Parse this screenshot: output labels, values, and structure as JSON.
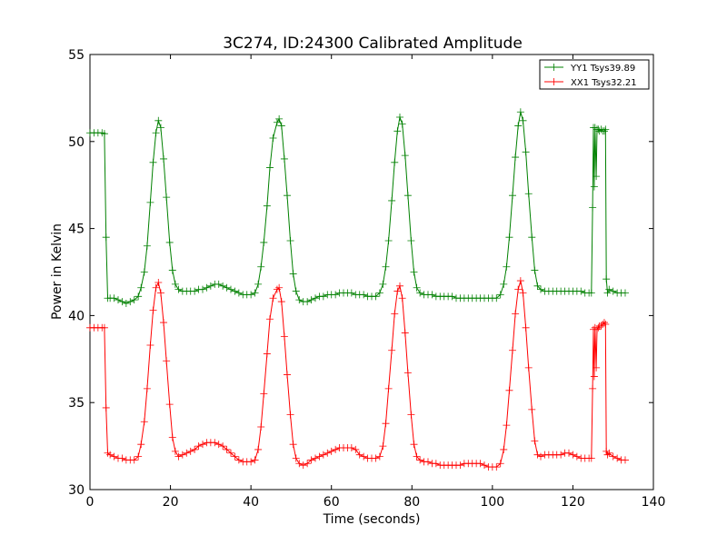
{
  "chart_data": {
    "type": "line",
    "title": "3C274, ID:24300 Calibrated Amplitude",
    "xlabel": "Time (seconds)",
    "ylabel": "Power in Kelvin",
    "xlim": [
      0,
      140
    ],
    "ylim": [
      30,
      55
    ],
    "xticks": [
      "0",
      "20",
      "40",
      "60",
      "80",
      "100",
      "120",
      "140"
    ],
    "yticks": [
      "30",
      "35",
      "40",
      "45",
      "50",
      "55"
    ],
    "grid": false,
    "legend": "top-right",
    "marker": "+",
    "series": [
      {
        "name": "YY1 Tsys39.89",
        "color": "#008000",
        "points": [
          [
            0,
            50.5
          ],
          [
            1,
            50.5
          ],
          [
            2,
            50.5
          ],
          [
            3,
            50.5
          ],
          [
            3.6,
            50.45
          ],
          [
            4.0,
            44.5
          ],
          [
            4.4,
            41.0
          ],
          [
            5,
            41.0
          ],
          [
            6,
            41.0
          ],
          [
            7,
            40.9
          ],
          [
            8,
            40.8
          ],
          [
            9,
            40.7
          ],
          [
            10,
            40.8
          ],
          [
            11,
            40.9
          ],
          [
            12,
            41.1
          ],
          [
            12.7,
            41.6
          ],
          [
            13.5,
            42.5
          ],
          [
            14.2,
            44.0
          ],
          [
            15,
            46.5
          ],
          [
            15.7,
            48.8
          ],
          [
            16.4,
            50.5
          ],
          [
            17,
            51.2
          ],
          [
            17.6,
            50.8
          ],
          [
            18.3,
            49.0
          ],
          [
            19,
            46.8
          ],
          [
            19.8,
            44.2
          ],
          [
            20.5,
            42.6
          ],
          [
            21.2,
            41.8
          ],
          [
            22,
            41.5
          ],
          [
            23,
            41.4
          ],
          [
            24,
            41.4
          ],
          [
            25,
            41.4
          ],
          [
            26,
            41.4
          ],
          [
            27,
            41.5
          ],
          [
            28,
            41.5
          ],
          [
            29,
            41.6
          ],
          [
            30,
            41.7
          ],
          [
            31,
            41.8
          ],
          [
            32,
            41.8
          ],
          [
            33,
            41.7
          ],
          [
            34,
            41.6
          ],
          [
            35,
            41.5
          ],
          [
            36,
            41.4
          ],
          [
            37,
            41.3
          ],
          [
            38,
            41.2
          ],
          [
            39,
            41.2
          ],
          [
            40,
            41.2
          ],
          [
            41,
            41.3
          ],
          [
            41.8,
            41.8
          ],
          [
            42.5,
            42.8
          ],
          [
            43.2,
            44.2
          ],
          [
            44,
            46.3
          ],
          [
            44.7,
            48.5
          ],
          [
            45.5,
            50.2
          ],
          [
            46.5,
            51.1
          ],
          [
            47,
            51.3
          ],
          [
            47.6,
            50.9
          ],
          [
            48.3,
            49.0
          ],
          [
            49,
            46.9
          ],
          [
            49.8,
            44.3
          ],
          [
            50.5,
            42.4
          ],
          [
            51.2,
            41.4
          ],
          [
            52,
            40.9
          ],
          [
            53,
            40.8
          ],
          [
            54,
            40.8
          ],
          [
            55,
            40.9
          ],
          [
            56,
            41.0
          ],
          [
            57,
            41.1
          ],
          [
            58,
            41.1
          ],
          [
            59,
            41.2
          ],
          [
            60,
            41.2
          ],
          [
            61,
            41.2
          ],
          [
            62,
            41.3
          ],
          [
            63,
            41.3
          ],
          [
            64,
            41.3
          ],
          [
            65,
            41.3
          ],
          [
            66,
            41.2
          ],
          [
            67,
            41.2
          ],
          [
            68,
            41.2
          ],
          [
            69,
            41.1
          ],
          [
            70,
            41.1
          ],
          [
            71,
            41.1
          ],
          [
            72,
            41.3
          ],
          [
            72.8,
            41.8
          ],
          [
            73.5,
            42.8
          ],
          [
            74.2,
            44.3
          ],
          [
            75,
            46.6
          ],
          [
            75.7,
            48.8
          ],
          [
            76.4,
            50.6
          ],
          [
            77,
            51.4
          ],
          [
            77.6,
            51.0
          ],
          [
            78.3,
            49.2
          ],
          [
            79,
            46.9
          ],
          [
            79.8,
            44.3
          ],
          [
            80.5,
            42.5
          ],
          [
            81.2,
            41.6
          ],
          [
            82,
            41.3
          ],
          [
            83,
            41.2
          ],
          [
            84,
            41.2
          ],
          [
            85,
            41.2
          ],
          [
            86,
            41.1
          ],
          [
            87,
            41.1
          ],
          [
            88,
            41.1
          ],
          [
            89,
            41.1
          ],
          [
            90,
            41.1
          ],
          [
            91,
            41.0
          ],
          [
            92,
            41.0
          ],
          [
            93,
            41.0
          ],
          [
            94,
            41.0
          ],
          [
            95,
            41.0
          ],
          [
            96,
            41.0
          ],
          [
            97,
            41.0
          ],
          [
            98,
            41.0
          ],
          [
            99,
            41.0
          ],
          [
            100,
            41.0
          ],
          [
            101,
            41.0
          ],
          [
            102,
            41.2
          ],
          [
            102.8,
            41.8
          ],
          [
            103.5,
            42.8
          ],
          [
            104.2,
            44.5
          ],
          [
            105,
            46.9
          ],
          [
            105.7,
            49.1
          ],
          [
            106.4,
            50.9
          ],
          [
            107,
            51.7
          ],
          [
            107.6,
            51.2
          ],
          [
            108.3,
            49.4
          ],
          [
            109,
            47.0
          ],
          [
            109.8,
            44.5
          ],
          [
            110.5,
            42.6
          ],
          [
            111.2,
            41.7
          ],
          [
            112,
            41.5
          ],
          [
            113,
            41.4
          ],
          [
            114,
            41.4
          ],
          [
            115,
            41.4
          ],
          [
            116,
            41.4
          ],
          [
            117,
            41.4
          ],
          [
            118,
            41.4
          ],
          [
            119,
            41.4
          ],
          [
            120,
            41.4
          ],
          [
            121,
            41.4
          ],
          [
            122,
            41.4
          ],
          [
            123,
            41.3
          ],
          [
            124,
            41.3
          ],
          [
            124.6,
            41.3
          ],
          [
            124.9,
            46.2
          ],
          [
            125.1,
            50.8
          ],
          [
            125.3,
            47.4
          ],
          [
            125.5,
            50.8
          ],
          [
            125.8,
            48.0
          ],
          [
            126.0,
            50.7
          ],
          [
            126.3,
            50.7
          ],
          [
            126.6,
            50.6
          ],
          [
            127.0,
            50.7
          ],
          [
            127.4,
            50.6
          ],
          [
            127.8,
            50.6
          ],
          [
            128.1,
            50.7
          ],
          [
            128.3,
            42.1
          ],
          [
            128.6,
            41.3
          ],
          [
            129,
            41.5
          ],
          [
            130,
            41.4
          ],
          [
            131,
            41.3
          ],
          [
            132,
            41.3
          ],
          [
            133,
            41.3
          ]
        ]
      },
      {
        "name": "XX1 Tsys32.21",
        "color": "#ff0000",
        "points": [
          [
            0,
            39.3
          ],
          [
            1,
            39.3
          ],
          [
            2,
            39.3
          ],
          [
            3,
            39.3
          ],
          [
            3.6,
            39.3
          ],
          [
            4.0,
            34.7
          ],
          [
            4.4,
            32.1
          ],
          [
            5,
            32.0
          ],
          [
            6,
            31.9
          ],
          [
            7,
            31.8
          ],
          [
            8,
            31.8
          ],
          [
            9,
            31.7
          ],
          [
            10,
            31.7
          ],
          [
            11,
            31.7
          ],
          [
            12,
            31.9
          ],
          [
            12.7,
            32.6
          ],
          [
            13.5,
            33.9
          ],
          [
            14.2,
            35.8
          ],
          [
            15,
            38.3
          ],
          [
            15.7,
            40.3
          ],
          [
            16.4,
            41.6
          ],
          [
            17,
            41.9
          ],
          [
            17.6,
            41.3
          ],
          [
            18.3,
            39.6
          ],
          [
            19,
            37.4
          ],
          [
            19.8,
            34.9
          ],
          [
            20.5,
            33.0
          ],
          [
            21.2,
            32.2
          ],
          [
            22,
            31.9
          ],
          [
            23,
            32.0
          ],
          [
            24,
            32.1
          ],
          [
            25,
            32.2
          ],
          [
            26,
            32.3
          ],
          [
            27,
            32.5
          ],
          [
            28,
            32.6
          ],
          [
            29,
            32.7
          ],
          [
            30,
            32.7
          ],
          [
            31,
            32.7
          ],
          [
            32,
            32.6
          ],
          [
            33,
            32.5
          ],
          [
            34,
            32.3
          ],
          [
            35,
            32.1
          ],
          [
            36,
            31.9
          ],
          [
            37,
            31.7
          ],
          [
            38,
            31.6
          ],
          [
            39,
            31.6
          ],
          [
            40,
            31.6
          ],
          [
            41,
            31.7
          ],
          [
            41.8,
            32.3
          ],
          [
            42.5,
            33.6
          ],
          [
            43.2,
            35.5
          ],
          [
            44,
            37.8
          ],
          [
            44.7,
            39.8
          ],
          [
            45.5,
            41.0
          ],
          [
            46.5,
            41.5
          ],
          [
            47,
            41.6
          ],
          [
            47.6,
            40.8
          ],
          [
            48.3,
            38.8
          ],
          [
            49,
            36.6
          ],
          [
            49.8,
            34.3
          ],
          [
            50.5,
            32.6
          ],
          [
            51.2,
            31.8
          ],
          [
            52,
            31.5
          ],
          [
            53,
            31.4
          ],
          [
            54,
            31.5
          ],
          [
            55,
            31.7
          ],
          [
            56,
            31.8
          ],
          [
            57,
            31.9
          ],
          [
            58,
            32.0
          ],
          [
            59,
            32.1
          ],
          [
            60,
            32.2
          ],
          [
            61,
            32.3
          ],
          [
            62,
            32.4
          ],
          [
            63,
            32.4
          ],
          [
            64,
            32.4
          ],
          [
            65,
            32.4
          ],
          [
            66,
            32.3
          ],
          [
            67,
            32.0
          ],
          [
            68,
            31.9
          ],
          [
            69,
            31.8
          ],
          [
            70,
            31.8
          ],
          [
            71,
            31.8
          ],
          [
            72,
            31.9
          ],
          [
            72.8,
            32.5
          ],
          [
            73.5,
            33.8
          ],
          [
            74.2,
            35.8
          ],
          [
            75,
            38.0
          ],
          [
            75.7,
            40.1
          ],
          [
            76.4,
            41.4
          ],
          [
            77,
            41.7
          ],
          [
            77.6,
            41.0
          ],
          [
            78.3,
            39.0
          ],
          [
            79,
            36.7
          ],
          [
            79.8,
            34.3
          ],
          [
            80.5,
            32.6
          ],
          [
            81.2,
            31.9
          ],
          [
            82,
            31.7
          ],
          [
            83,
            31.6
          ],
          [
            84,
            31.6
          ],
          [
            85,
            31.5
          ],
          [
            86,
            31.5
          ],
          [
            87,
            31.4
          ],
          [
            88,
            31.4
          ],
          [
            89,
            31.4
          ],
          [
            90,
            31.4
          ],
          [
            91,
            31.4
          ],
          [
            92,
            31.4
          ],
          [
            93,
            31.5
          ],
          [
            94,
            31.5
          ],
          [
            95,
            31.5
          ],
          [
            96,
            31.5
          ],
          [
            97,
            31.5
          ],
          [
            98,
            31.4
          ],
          [
            99,
            31.3
          ],
          [
            100,
            31.3
          ],
          [
            101,
            31.3
          ],
          [
            102,
            31.5
          ],
          [
            102.8,
            32.3
          ],
          [
            103.5,
            33.7
          ],
          [
            104.2,
            35.7
          ],
          [
            105,
            38.0
          ],
          [
            105.7,
            40.1
          ],
          [
            106.4,
            41.5
          ],
          [
            107,
            42.0
          ],
          [
            107.6,
            41.3
          ],
          [
            108.3,
            39.3
          ],
          [
            109,
            37.0
          ],
          [
            109.8,
            34.6
          ],
          [
            110.5,
            32.8
          ],
          [
            111.2,
            32.0
          ],
          [
            112,
            31.9
          ],
          [
            113,
            32.0
          ],
          [
            114,
            32.0
          ],
          [
            115,
            32.0
          ],
          [
            116,
            32.0
          ],
          [
            117,
            32.0
          ],
          [
            118,
            32.1
          ],
          [
            119,
            32.1
          ],
          [
            120,
            32.0
          ],
          [
            121,
            31.9
          ],
          [
            122,
            31.8
          ],
          [
            123,
            31.8
          ],
          [
            124,
            31.8
          ],
          [
            124.6,
            31.8
          ],
          [
            124.9,
            35.8
          ],
          [
            125.1,
            39.2
          ],
          [
            125.3,
            36.5
          ],
          [
            125.5,
            39.3
          ],
          [
            125.8,
            37.0
          ],
          [
            126.0,
            39.2
          ],
          [
            126.3,
            39.3
          ],
          [
            126.6,
            39.4
          ],
          [
            127.0,
            39.4
          ],
          [
            127.4,
            39.5
          ],
          [
            127.8,
            39.6
          ],
          [
            128.1,
            39.5
          ],
          [
            128.3,
            32.2
          ],
          [
            128.6,
            32.0
          ],
          [
            129,
            32.1
          ],
          [
            130,
            31.9
          ],
          [
            131,
            31.8
          ],
          [
            132,
            31.7
          ],
          [
            133,
            31.7
          ]
        ]
      }
    ]
  }
}
